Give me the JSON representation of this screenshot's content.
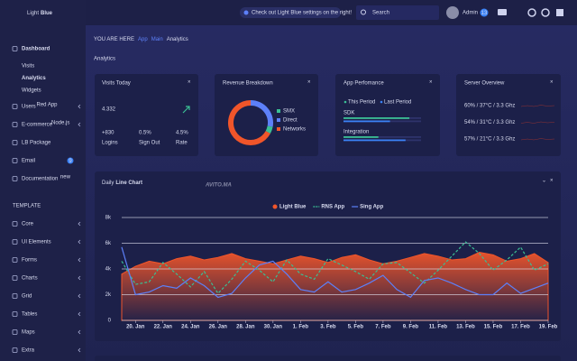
{
  "sidebar": {
    "logo": {
      "light": "Light",
      "bold": "Blue"
    },
    "nav": [
      {
        "label": "Dashboard",
        "children": [
          "Visits",
          "Analytics",
          "Widgets"
        ]
      },
      {
        "label": "Users",
        "badge": "Red App",
        "badge_color": "#f2453d"
      },
      {
        "label": "E-commerce",
        "badge": "Node.js",
        "badge_color": "#f2453d"
      },
      {
        "label": "LB Package"
      },
      {
        "label": "Email",
        "badge": "9",
        "badge_color": "#3b82f6"
      },
      {
        "label": "Documentation",
        "badge": "new",
        "badge_color": "#3abf94"
      }
    ],
    "section_label": "TEMPLATE",
    "template_nav": [
      "Core",
      "UI Elements",
      "Forms",
      "Charts",
      "Grid",
      "Tables",
      "Maps",
      "Extra"
    ]
  },
  "topbar": {
    "notice": "Check out Light Blue settings on the right!",
    "search_placeholder": "Search",
    "user": "Admin",
    "user_badge": "13"
  },
  "breadcrumb": [
    "YOU ARE HERE",
    "App",
    "Main",
    "Analytics"
  ],
  "page_title": "Analytics",
  "watermark": "AVITO.MA",
  "visits": {
    "title": "Visits Today",
    "total": "4.332",
    "stats": [
      {
        "value": "+830",
        "label": "Logins"
      },
      {
        "value": "0.5%",
        "label": "Sign Out"
      },
      {
        "value": "4.5%",
        "label": "Rate"
      }
    ]
  },
  "revenue": {
    "title": "Revenue Breakdown",
    "type": "pie",
    "series": [
      {
        "name": "SMX",
        "color": "#3abf94",
        "value": 5
      },
      {
        "name": "Direct",
        "color": "#5d80f9",
        "value": 28
      },
      {
        "name": "Networks",
        "color": "#f0552a",
        "value": 67
      }
    ]
  },
  "performance": {
    "title": "App Perfomance",
    "legend": [
      {
        "name": "This Period",
        "color": "#3abf94"
      },
      {
        "name": "Last Period",
        "color": "#3b82f6"
      }
    ],
    "max": 100,
    "rows": [
      {
        "label": "SDK",
        "values": [
          85,
          60
        ]
      },
      {
        "label": "Integration",
        "values": [
          45,
          80
        ]
      }
    ]
  },
  "server": {
    "title": "Server Overview",
    "rows": [
      "60% / 37°C / 3.3 Ghz",
      "54% / 31°C / 3.3 Ghz",
      "57% / 21°C / 3.3 Ghz"
    ]
  },
  "daily_chart": {
    "type": "line",
    "title_normal": "Daily",
    "title_bold": "Line Chart",
    "categories": [
      null,
      "20. Jan",
      null,
      "22. Jan",
      null,
      "24. Jan",
      null,
      "26. Jan",
      null,
      "28. Jan",
      null,
      "30. Jan",
      null,
      "1. Feb",
      null,
      "3. Feb",
      null,
      "5. Feb",
      null,
      "7. Feb",
      null,
      "9. Feb",
      null,
      "11. Feb",
      null,
      "13. Feb",
      null,
      "15. Feb",
      null,
      "17. Feb",
      null,
      "19. Feb"
    ],
    "series": [
      {
        "name": "Light Blue",
        "color": "#f0552a",
        "style": "area",
        "values": [
          3600,
          4200,
          4600,
          4400,
          4800,
          5000,
          4700,
          4900,
          5200,
          4800,
          4600,
          4400,
          4700,
          5000,
          4800,
          4500,
          4900,
          5100,
          4700,
          4400,
          4600,
          4900,
          5200,
          5000,
          4700,
          4800,
          5300,
          5100,
          4600,
          4800,
          5200,
          4500
        ]
      },
      {
        "name": "RNS App",
        "color": "#3abf94",
        "style": "dashed",
        "values": [
          4600,
          2800,
          3000,
          4500,
          3600,
          2600,
          3800,
          2100,
          3200,
          4600,
          3900,
          3000,
          4700,
          3600,
          3200,
          4800,
          4300,
          3800,
          3200,
          4400,
          4500,
          3700,
          2900,
          3900,
          5000,
          6100,
          5200,
          3900,
          4700,
          5700,
          3900,
          4400
        ]
      },
      {
        "name": "Sing App",
        "color": "#5d80f9",
        "style": "solid",
        "values": [
          5700,
          2000,
          2200,
          2700,
          2500,
          3300,
          2700,
          1800,
          2100,
          3300,
          4300,
          4600,
          3600,
          2400,
          2200,
          3000,
          2200,
          2400,
          2900,
          3500,
          2400,
          1800,
          3100,
          3300,
          2900,
          2400,
          2000,
          2000,
          2900,
          2100,
          2500,
          2900
        ]
      }
    ],
    "ylim": [
      0,
      8000
    ],
    "yticks": [
      0,
      {
        "value": 2000,
        "label": "2k"
      },
      {
        "value": 4000,
        "label": "4k"
      },
      {
        "value": 6000,
        "label": "6k"
      },
      {
        "value": 8000,
        "label": "8k"
      }
    ],
    "grid": true
  }
}
